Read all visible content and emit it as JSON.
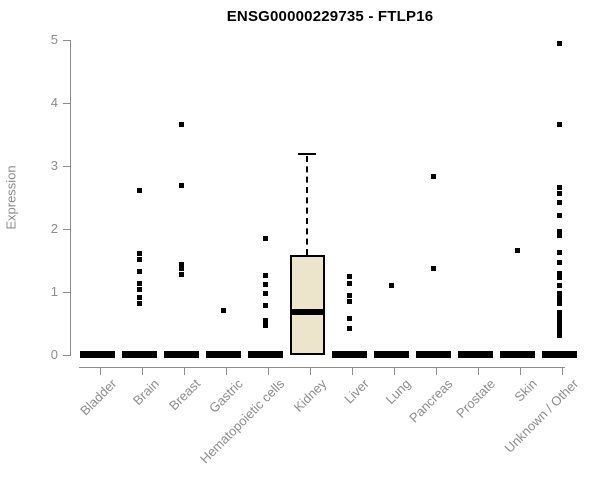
{
  "page": {
    "background": "#ffffff"
  },
  "chart_data": {
    "type": "boxplot",
    "title": "ENSG00000229735 - FTLP16",
    "ylabel": "Expression",
    "xlabel": "",
    "ylim": [
      0,
      5
    ],
    "yticks": [
      0,
      1,
      2,
      3,
      4,
      5
    ],
    "grid": false,
    "legend": "none",
    "axis_color": "#8c8c8c",
    "label_color": "#8c8c8c",
    "point_color": "#000000",
    "box_fill": "#ece5cb",
    "box_border": "#000000",
    "categories": [
      "Bladder",
      "Brain",
      "Breast",
      "Gastric",
      "Hematopoietic cells",
      "Kidney",
      "Liver",
      "Lung",
      "Pancreas",
      "Prostate",
      "Skin",
      "Unknown / Other"
    ],
    "series": [
      {
        "category": "Bladder",
        "box": {
          "q1": 0,
          "median": 0,
          "q3": 0
        },
        "outliers": []
      },
      {
        "category": "Brain",
        "box": {
          "q1": 0,
          "median": 0,
          "q3": 0
        },
        "outliers": [
          2.62,
          1.62,
          1.52,
          1.33,
          1.15,
          1.05,
          0.92,
          0.83
        ]
      },
      {
        "category": "Breast",
        "box": {
          "q1": 0,
          "median": 0,
          "q3": 0
        },
        "outliers": [
          3.67,
          2.7,
          1.45,
          1.38,
          1.28
        ]
      },
      {
        "category": "Gastric",
        "box": {
          "q1": 0,
          "median": 0,
          "q3": 0
        },
        "outliers": [
          0.71
        ]
      },
      {
        "category": "Hematopoietic cells",
        "box": {
          "q1": 0,
          "median": 0,
          "q3": 0
        },
        "outliers": [
          1.85,
          1.27,
          1.13,
          0.98,
          0.79,
          0.55,
          0.47
        ]
      },
      {
        "category": "Kidney",
        "box": {
          "q1": 0,
          "median": 0.68,
          "q3": 1.59,
          "whisker_high": 3.2
        },
        "outliers": []
      },
      {
        "category": "Liver",
        "box": {
          "q1": 0,
          "median": 0,
          "q3": 0
        },
        "outliers": [
          1.25,
          1.14,
          0.95,
          0.86,
          0.59,
          0.43
        ]
      },
      {
        "category": "Lung",
        "box": {
          "q1": 0,
          "median": 0,
          "q3": 0
        },
        "outliers": [
          1.11
        ]
      },
      {
        "category": "Pancreas",
        "box": {
          "q1": 0,
          "median": 0,
          "q3": 0
        },
        "outliers": [
          2.84,
          1.38
        ]
      },
      {
        "category": "Prostate",
        "box": {
          "q1": 0,
          "median": 0,
          "q3": 0
        },
        "outliers": []
      },
      {
        "category": "Skin",
        "box": {
          "q1": 0,
          "median": 0,
          "q3": 0
        },
        "outliers": [
          1.67
        ]
      },
      {
        "category": "Unknown / Other",
        "box": {
          "q1": 0,
          "median": 0,
          "q3": 0
        },
        "outliers": [
          4.95,
          3.67,
          2.67,
          2.57,
          2.43,
          2.22,
          1.97,
          1.9,
          1.63,
          1.48,
          1.3,
          1.24,
          1.11,
          0.98,
          0.9,
          0.83,
          0.68,
          0.64,
          0.6,
          0.56,
          0.52,
          0.48,
          0.44,
          0.4,
          0.36,
          0.32
        ]
      }
    ]
  }
}
